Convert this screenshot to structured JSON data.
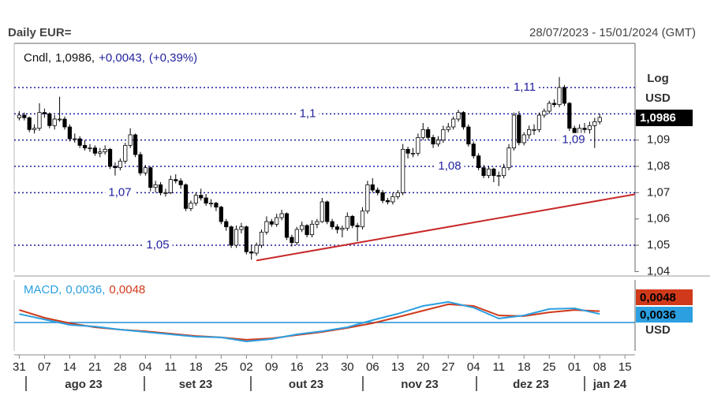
{
  "header": {
    "title": "Daily EUR=",
    "range": "28/07/2023 - 15/01/2024 (GMT)"
  },
  "chart_data": [
    {
      "type": "candlestick",
      "legend": {
        "name": "Cndl,",
        "last": "1,0986,",
        "change": "+0,0043,",
        "change_pct": "(+0,39%)"
      },
      "scale_labels": [
        "Log",
        "USD"
      ],
      "price_tag": "1,0986",
      "up_color": "#ffffff",
      "down_color": "#000000",
      "level_color": "#1f1f9f",
      "xlim": [
        -1,
        122
      ],
      "ylim": [
        1.0398,
        1.1268
      ],
      "yticks": [
        {
          "value": 1.04,
          "label": "1,04"
        },
        {
          "value": 1.05,
          "label": "1,05"
        },
        {
          "value": 1.06,
          "label": "1,06"
        },
        {
          "value": 1.07,
          "label": "1,07"
        },
        {
          "value": 1.08,
          "label": "1,08"
        },
        {
          "value": 1.09,
          "label": "1,09"
        }
      ],
      "levels": [
        {
          "value": 1.11,
          "label": "1,11"
        },
        {
          "value": 1.1,
          "label": "1,1"
        },
        {
          "value": 1.09,
          "label": "1,09"
        },
        {
          "value": 1.08,
          "label": "1,08"
        },
        {
          "value": 1.07,
          "label": "1,07"
        },
        {
          "value": 1.05,
          "label": "1,05"
        }
      ],
      "trendline": {
        "color": "#c8282a",
        "x": [
          47,
          122
        ],
        "y": [
          1.0442,
          1.0694
        ]
      },
      "xticks": [
        {
          "value": 0,
          "label": "31"
        },
        {
          "value": 5,
          "label": "07"
        },
        {
          "value": 10,
          "label": "14"
        },
        {
          "value": 15,
          "label": "21"
        },
        {
          "value": 20,
          "label": "28"
        },
        {
          "value": 25,
          "label": "04"
        },
        {
          "value": 30,
          "label": "11"
        },
        {
          "value": 35,
          "label": "18"
        },
        {
          "value": 40,
          "label": "25"
        },
        {
          "value": 45,
          "label": "02"
        },
        {
          "value": 50,
          "label": "09"
        },
        {
          "value": 55,
          "label": "16"
        },
        {
          "value": 60,
          "label": "23"
        },
        {
          "value": 65,
          "label": "30"
        },
        {
          "value": 70,
          "label": "06"
        },
        {
          "value": 75,
          "label": "13"
        },
        {
          "value": 80,
          "label": "20"
        },
        {
          "value": 85,
          "label": "27"
        },
        {
          "value": 90,
          "label": "04"
        },
        {
          "value": 95,
          "label": "11"
        },
        {
          "value": 100,
          "label": "18"
        },
        {
          "value": 105,
          "label": "25"
        },
        {
          "value": 110,
          "label": "01"
        },
        {
          "value": 115,
          "label": "08"
        },
        {
          "value": 120,
          "label": "15"
        }
      ],
      "months": [
        "ago 23",
        "set 23",
        "out 23",
        "nov 23",
        "dez 23",
        "jan 24"
      ],
      "candles": [
        [
          1.0985,
          1.101,
          1.0975,
          1.0995
        ],
        [
          1.0995,
          1.1005,
          1.0975,
          1.0985
        ],
        [
          1.0985,
          1.099,
          1.093,
          1.094
        ],
        [
          1.094,
          1.096,
          1.0925,
          1.0945
        ],
        [
          1.0945,
          1.104,
          1.0935,
          1.1005
        ],
        [
          1.1005,
          1.102,
          1.0985,
          1.1
        ],
        [
          1.1,
          1.1005,
          1.0945,
          1.0955
        ],
        [
          1.0955,
          1.0995,
          1.094,
          1.098
        ],
        [
          1.098,
          1.1065,
          1.097,
          1.098
        ],
        [
          1.098,
          1.099,
          1.094,
          1.095
        ],
        [
          1.095,
          1.096,
          1.0895,
          1.0905
        ],
        [
          1.0905,
          1.0925,
          1.089,
          1.0905
        ],
        [
          1.0905,
          1.0915,
          1.087,
          1.088
        ],
        [
          1.088,
          1.09,
          1.086,
          1.087
        ],
        [
          1.087,
          1.0885,
          1.0855,
          1.087
        ],
        [
          1.087,
          1.088,
          1.084,
          1.085
        ],
        [
          1.085,
          1.087,
          1.0835,
          1.0855
        ],
        [
          1.0855,
          1.088,
          1.0845,
          1.0865
        ],
        [
          1.0865,
          1.087,
          1.079,
          1.08
        ],
        [
          1.08,
          1.0815,
          1.0765,
          1.0795
        ],
        [
          1.0795,
          1.083,
          1.0785,
          1.082
        ],
        [
          1.082,
          1.089,
          1.081,
          1.088
        ],
        [
          1.088,
          1.0945,
          1.087,
          1.092
        ],
        [
          1.092,
          1.0925,
          1.0835,
          1.0845
        ],
        [
          1.0845,
          1.0855,
          1.0765,
          1.0775
        ],
        [
          1.0775,
          1.0805,
          1.0765,
          1.0795
        ],
        [
          1.0795,
          1.08,
          1.0705,
          1.072
        ],
        [
          1.072,
          1.0745,
          1.07,
          1.073
        ],
        [
          1.073,
          1.074,
          1.069,
          1.07
        ],
        [
          1.07,
          1.0715,
          1.0685,
          1.07
        ],
        [
          1.07,
          1.0765,
          1.0695,
          1.075
        ],
        [
          1.075,
          1.077,
          1.0735,
          1.0745
        ],
        [
          1.0745,
          1.0755,
          1.0715,
          1.073
        ],
        [
          1.073,
          1.0735,
          1.063,
          1.064
        ],
        [
          1.064,
          1.067,
          1.063,
          1.066
        ],
        [
          1.066,
          1.07,
          1.065,
          1.069
        ],
        [
          1.069,
          1.0715,
          1.067,
          1.068
        ],
        [
          1.068,
          1.0695,
          1.065,
          1.066
        ],
        [
          1.066,
          1.0675,
          1.0645,
          1.066
        ],
        [
          1.066,
          1.0665,
          1.063,
          1.0645
        ],
        [
          1.0645,
          1.065,
          1.058,
          1.059
        ],
        [
          1.059,
          1.06,
          1.0555,
          1.057
        ],
        [
          1.057,
          1.0575,
          1.049,
          1.05
        ],
        [
          1.05,
          1.0575,
          1.049,
          1.056
        ],
        [
          1.056,
          1.0585,
          1.0545,
          1.057
        ],
        [
          1.057,
          1.0575,
          1.0465,
          1.0475
        ],
        [
          1.0475,
          1.05,
          1.0445,
          1.047
        ],
        [
          1.047,
          1.051,
          1.046,
          1.05
        ],
        [
          1.05,
          1.056,
          1.049,
          1.055
        ],
        [
          1.055,
          1.061,
          1.054,
          1.059
        ],
        [
          1.059,
          1.06,
          1.057,
          1.058
        ],
        [
          1.058,
          1.062,
          1.057,
          1.0605
        ],
        [
          1.0605,
          1.0635,
          1.0595,
          1.062
        ],
        [
          1.062,
          1.0625,
          1.052,
          1.053
        ],
        [
          1.053,
          1.054,
          1.0495,
          1.051
        ],
        [
          1.051,
          1.057,
          1.05,
          1.056
        ],
        [
          1.056,
          1.059,
          1.055,
          1.0575
        ],
        [
          1.0575,
          1.058,
          1.053,
          1.054
        ],
        [
          1.054,
          1.0595,
          1.053,
          1.058
        ],
        [
          1.058,
          1.06,
          1.0565,
          1.059
        ],
        [
          1.059,
          1.068,
          1.0585,
          1.0665
        ],
        [
          1.0665,
          1.067,
          1.058,
          1.059
        ],
        [
          1.059,
          1.06,
          1.056,
          1.057
        ],
        [
          1.057,
          1.058,
          1.0545,
          1.056
        ],
        [
          1.056,
          1.0575,
          1.053,
          1.0565
        ],
        [
          1.0565,
          1.0625,
          1.0555,
          1.061
        ],
        [
          1.061,
          1.0615,
          1.0565,
          1.0575
        ],
        [
          1.0575,
          1.0585,
          1.0515,
          1.057
        ],
        [
          1.057,
          1.0645,
          1.056,
          1.063
        ],
        [
          1.063,
          1.0745,
          1.062,
          1.073
        ],
        [
          1.073,
          1.0755,
          1.07,
          1.071
        ],
        [
          1.071,
          1.072,
          1.069,
          1.07
        ],
        [
          1.07,
          1.071,
          1.066,
          1.067
        ],
        [
          1.067,
          1.068,
          1.0655,
          1.0665
        ],
        [
          1.0665,
          1.07,
          1.0655,
          1.0685
        ],
        [
          1.0685,
          1.071,
          1.0675,
          1.07
        ],
        [
          1.07,
          1.0885,
          1.069,
          1.0865
        ],
        [
          1.0865,
          1.0875,
          1.083,
          1.085
        ],
        [
          1.085,
          1.087,
          1.0835,
          1.085
        ],
        [
          1.085,
          1.0925,
          1.084,
          1.091
        ],
        [
          1.091,
          1.0965,
          1.09,
          1.094
        ],
        [
          1.094,
          1.095,
          1.09,
          1.091
        ],
        [
          1.091,
          1.092,
          1.087,
          1.0885
        ],
        [
          1.0885,
          1.0915,
          1.0875,
          1.09
        ],
        [
          1.09,
          1.0955,
          1.089,
          1.094
        ],
        [
          1.094,
          1.0965,
          1.093,
          1.095
        ],
        [
          1.095,
          1.099,
          1.094,
          1.098
        ],
        [
          1.098,
          1.1015,
          1.097,
          1.1005
        ],
        [
          1.1005,
          1.101,
          1.094,
          1.095
        ],
        [
          1.095,
          1.096,
          1.0875,
          1.0885
        ],
        [
          1.0885,
          1.0895,
          1.083,
          1.084
        ],
        [
          1.084,
          1.085,
          1.0785,
          1.0795
        ],
        [
          1.0795,
          1.0805,
          1.0755,
          1.0765
        ],
        [
          1.0765,
          1.08,
          1.0755,
          1.079
        ],
        [
          1.079,
          1.0795,
          1.074,
          1.0765
        ],
        [
          1.0765,
          1.078,
          1.0725,
          1.0765
        ],
        [
          1.0765,
          1.081,
          1.0755,
          1.0795
        ],
        [
          1.0795,
          1.0885,
          1.0785,
          1.087
        ],
        [
          1.087,
          1.1005,
          1.086,
          1.0995
        ],
        [
          1.0995,
          1.101,
          1.088,
          1.089
        ],
        [
          1.089,
          1.093,
          1.088,
          1.092
        ],
        [
          1.092,
          1.0955,
          1.0905,
          1.094
        ],
        [
          1.094,
          1.096,
          1.092,
          1.094
        ],
        [
          1.094,
          1.1005,
          1.093,
          1.0995
        ],
        [
          1.0995,
          1.102,
          1.0985,
          1.101
        ],
        [
          1.101,
          1.105,
          1.1,
          1.104
        ],
        [
          1.104,
          1.1055,
          1.1025,
          1.1035
        ],
        [
          1.1035,
          1.114,
          1.1025,
          1.11
        ],
        [
          1.11,
          1.111,
          1.103,
          1.104
        ],
        [
          1.104,
          1.1045,
          1.0935,
          1.0945
        ],
        [
          1.0945,
          1.0955,
          1.0895,
          1.092
        ],
        [
          1.092,
          1.096,
          1.091,
          1.0945
        ],
        [
          1.0945,
          1.0965,
          1.092,
          1.094
        ],
        [
          1.094,
          1.097,
          1.0925,
          1.0955
        ],
        [
          1.0955,
          1.0985,
          1.087,
          1.097
        ],
        [
          1.097,
          1.1,
          1.096,
          1.0986
        ]
      ]
    },
    {
      "type": "line",
      "legend_name": "MACD,",
      "unit": "USD",
      "xlim": [
        -1,
        122
      ],
      "ylim": [
        -0.012,
        0.018
      ],
      "series": [
        {
          "color": "#2b9fe0",
          "legend_value": "0,0036,",
          "tag": "0,0036",
          "x": [
            0,
            5,
            10,
            15,
            20,
            25,
            30,
            35,
            40,
            45,
            50,
            55,
            60,
            65,
            70,
            75,
            80,
            85,
            90,
            95,
            100,
            105,
            110,
            115
          ],
          "values": [
            0.0036,
            0.0013,
            -0.001,
            -0.0017,
            -0.003,
            -0.004,
            -0.005,
            -0.006,
            -0.0063,
            -0.008,
            -0.007,
            -0.005,
            -0.0037,
            -0.002,
            0.001,
            0.0037,
            0.007,
            0.0087,
            0.0063,
            0.0017,
            0.003,
            0.0057,
            0.006,
            0.0036
          ]
        },
        {
          "color": "#d03a1a",
          "legend_value": "0,0048",
          "tag": "0,0048",
          "x": [
            0,
            5,
            10,
            15,
            20,
            25,
            30,
            35,
            40,
            45,
            50,
            55,
            60,
            65,
            70,
            75,
            80,
            85,
            90,
            95,
            100,
            105,
            110,
            115
          ],
          "values": [
            0.0053,
            0.002,
            -0.0003,
            -0.002,
            -0.003,
            -0.0037,
            -0.0047,
            -0.0057,
            -0.0063,
            -0.0073,
            -0.0067,
            -0.0053,
            -0.004,
            -0.0023,
            -0.0003,
            0.0023,
            0.005,
            0.0077,
            0.007,
            0.003,
            0.0027,
            0.0043,
            0.0053,
            0.0048
          ]
        }
      ]
    }
  ]
}
